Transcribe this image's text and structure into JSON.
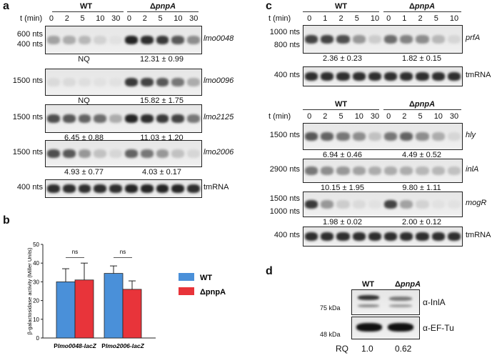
{
  "panels": {
    "a": {
      "label": "a",
      "t_label": "t (min)",
      "wt": "WT",
      "mut": "ΔpnpA",
      "timepoints": [
        "0",
        "2",
        "5",
        "10",
        "30",
        "0",
        "2",
        "5",
        "10",
        "30"
      ],
      "blots": [
        {
          "sizes": [
            "600 nts",
            "400 nts"
          ],
          "gene": "lmo0048",
          "q_wt": "NQ",
          "q_mut": "12.31 ± 0.99"
        },
        {
          "sizes": [
            "1500 nts"
          ],
          "gene": "lmo0096",
          "q_wt": "NQ",
          "q_mut": "15.82 ± 1.75"
        },
        {
          "sizes": [
            "1500 nts"
          ],
          "gene": "lmo2125",
          "q_wt": "6.45 ± 0.88",
          "q_mut": "11.03 ± 1.20"
        },
        {
          "sizes": [
            "1500 nts"
          ],
          "gene": "lmo2006",
          "q_wt": "4.93 ± 0.77",
          "q_mut": "4.03 ± 0.17"
        },
        {
          "sizes": [
            "400 nts"
          ],
          "gene": "tmRNA",
          "q_wt": "",
          "q_mut": ""
        }
      ]
    },
    "b": {
      "label": "b",
      "ylabel": "β-galactosidase activity (Miller Units)",
      "yticks": [
        "0",
        "10",
        "20",
        "30",
        "40",
        "50"
      ],
      "groups": [
        "Plmo0048-lacZ",
        "Plmo2006-lacZ"
      ],
      "ns": [
        "ns",
        "ns"
      ],
      "legend": [
        {
          "name": "WT",
          "color": "#4a90d9"
        },
        {
          "name": "ΔpnpA",
          "color": "#e8343a"
        }
      ]
    },
    "c": {
      "label": "c",
      "t_label": "t (min)",
      "wt": "WT",
      "mut": "ΔpnpA",
      "top_timepoints": [
        "0",
        "1",
        "2",
        "5",
        "10",
        "0",
        "1",
        "2",
        "5",
        "10"
      ],
      "bottom_timepoints": [
        "0",
        "2",
        "5",
        "10",
        "30",
        "0",
        "2",
        "5",
        "10",
        "30"
      ],
      "blots": [
        {
          "sizes": [
            "1000 nts",
            "800 nts"
          ],
          "gene": "prfA",
          "q_wt": "2.36 ± 0.23",
          "q_mut": "1.82 ± 0.15"
        },
        {
          "sizes": [
            "400 nts"
          ],
          "gene": "tmRNA",
          "q_wt": "",
          "q_mut": ""
        },
        {
          "sizes": [
            "1500 nts"
          ],
          "gene": "hly",
          "q_wt": "6.94 ± 0.46",
          "q_mut": "4.49 ± 0.52"
        },
        {
          "sizes": [
            "2900 nts"
          ],
          "gene": "inlA",
          "q_wt": "10.15 ± 1.95",
          "q_mut": "9.80 ± 1.11"
        },
        {
          "sizes": [
            "1500 nts",
            "1000 nts"
          ],
          "gene": "mogR",
          "q_wt": "1.98 ± 0.02",
          "q_mut": "2.00 ± 0.12"
        },
        {
          "sizes": [
            "400 nts"
          ],
          "gene": "tmRNA",
          "q_wt": "",
          "q_mut": ""
        }
      ]
    },
    "d": {
      "label": "d",
      "wt": "WT",
      "mut": "ΔpnpA",
      "markers": [
        "75 kDa",
        "48 kDa"
      ],
      "antibodies": [
        "α-InlA",
        "α-EF-Tu"
      ],
      "rq_label": "RQ",
      "rq_values": [
        "1.0",
        "0.62"
      ]
    }
  },
  "chart_data": {
    "type": "bar",
    "categories": [
      "Plmo0048-lacZ",
      "Plmo2006-lacZ"
    ],
    "series": [
      {
        "name": "WT",
        "values": [
          30,
          34.5
        ],
        "errors": [
          7,
          4
        ]
      },
      {
        "name": "ΔpnpA",
        "values": [
          31,
          26
        ],
        "errors": [
          9,
          4.5
        ]
      }
    ],
    "ylabel": "β-galactosidase activity (Miller Units)",
    "ylim": [
      0,
      50
    ],
    "annotations": [
      "ns",
      "ns"
    ]
  }
}
